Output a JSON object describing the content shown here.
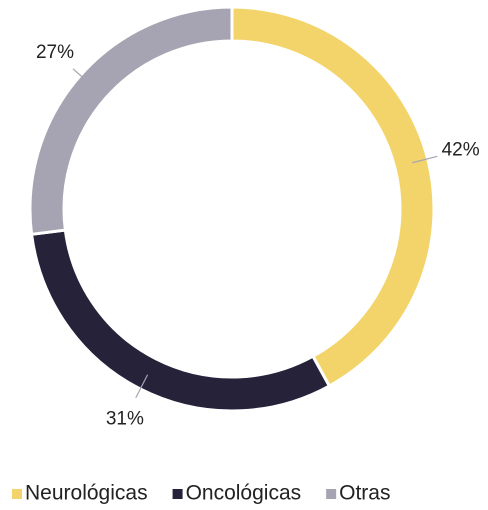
{
  "chart_data": {
    "type": "donut",
    "categories": [
      "Neurológicas",
      "Oncológicas",
      "Otras"
    ],
    "values": [
      42,
      31,
      27
    ],
    "value_labels": [
      "42%",
      "31%",
      "27%"
    ],
    "colors": [
      "#f3d46b",
      "#25223a",
      "#a6a4b2"
    ],
    "legend": "bottom"
  }
}
